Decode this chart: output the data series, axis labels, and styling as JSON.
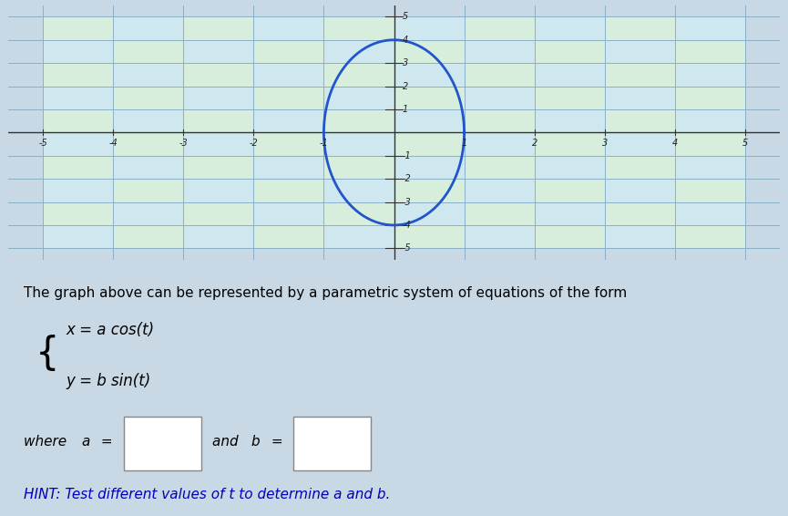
{
  "a": 1,
  "b": 4,
  "xlim": [
    -5.5,
    5.5
  ],
  "ylim": [
    -5.5,
    5.5
  ],
  "xticks": [
    -5,
    -4,
    -3,
    -2,
    -1,
    1,
    2,
    3,
    4,
    5
  ],
  "yticks": [
    -5,
    -4,
    -3,
    -2,
    -1,
    1,
    2,
    3,
    4,
    5
  ],
  "ellipse_color": "#2255cc",
  "ellipse_linewidth": 2.0,
  "grid_major_color": "#8ab0c8",
  "grid_minor_color": "#a0c0d0",
  "bg_color": "#c8d8e4",
  "graph_bg": "#c8d8e4",
  "text_intro": "The graph above can be represented by a parametric system of equations of the form",
  "hint_text": "HINT: Test different values of t to determine a and b.",
  "hint_color": "#0000bb",
  "font_size_text": 11,
  "font_size_hint": 11
}
